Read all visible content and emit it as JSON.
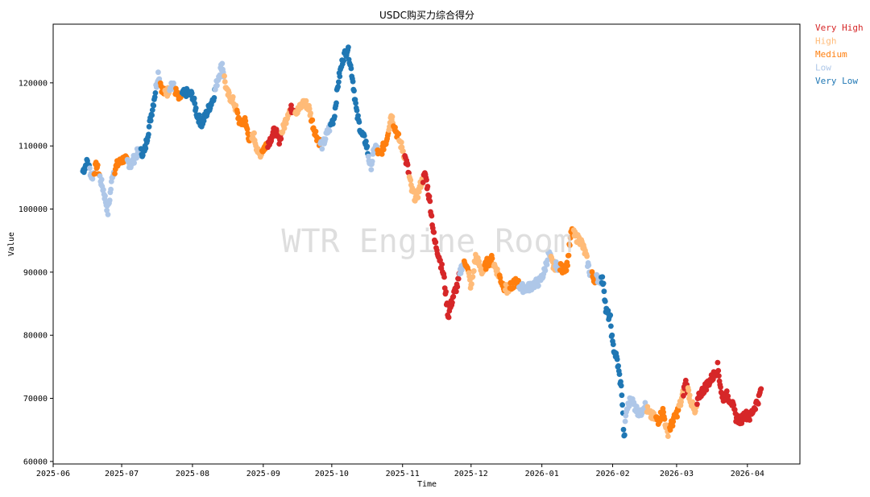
{
  "chart_data": {
    "type": "scatter",
    "title": "USDC购买力综合得分",
    "xlabel": "Time",
    "ylabel": "Value",
    "watermark": "WTR Engine Room",
    "xlim": [
      "2025-06-01",
      "2026-04-24"
    ],
    "ylim": [
      59600,
      129300
    ],
    "x_ticks": [
      "2025-06",
      "2025-07",
      "2025-08",
      "2025-09",
      "2025-10",
      "2025-11",
      "2025-12",
      "2026-01",
      "2026-02",
      "2026-03",
      "2026-04"
    ],
    "x_tick_dates": [
      "2025-06-01",
      "2025-07-01",
      "2025-08-01",
      "2025-09-01",
      "2025-10-01",
      "2025-11-01",
      "2025-12-01",
      "2026-01-01",
      "2026-02-01",
      "2026-03-01",
      "2026-04-01"
    ],
    "y_ticks": [
      60000,
      70000,
      80000,
      90000,
      100000,
      110000,
      120000
    ],
    "grid": false,
    "legend_position": "outside-top-right",
    "legend": [
      {
        "label": "Very High",
        "color": "#d62728"
      },
      {
        "label": "High",
        "color": "#ffbb78"
      },
      {
        "label": "Medium",
        "color": "#ff7f0e"
      },
      {
        "label": "Low",
        "color": "#aec7e8"
      },
      {
        "label": "Very Low",
        "color": "#1f77b4"
      }
    ],
    "series_path": [
      [
        "2025-06-14",
        106000,
        "Very Low"
      ],
      [
        "2025-06-16",
        107500,
        "Very Low"
      ],
      [
        "2025-06-18",
        105000,
        "Low"
      ],
      [
        "2025-06-20",
        107000,
        "Medium"
      ],
      [
        "2025-06-23",
        103000,
        "Low"
      ],
      [
        "2025-06-25",
        99500,
        "Low"
      ],
      [
        "2025-06-27",
        105500,
        "Low"
      ],
      [
        "2025-06-29",
        107000,
        "Medium"
      ],
      [
        "2025-07-02",
        108000,
        "Medium"
      ],
      [
        "2025-07-05",
        107000,
        "Low"
      ],
      [
        "2025-07-08",
        109000,
        "Low"
      ],
      [
        "2025-07-11",
        109000,
        "Very Low"
      ],
      [
        "2025-07-13",
        113000,
        "Very Low"
      ],
      [
        "2025-07-15",
        117000,
        "Very Low"
      ],
      [
        "2025-07-17",
        121500,
        "Low"
      ],
      [
        "2025-07-19",
        118500,
        "Medium"
      ],
      [
        "2025-07-21",
        118500,
        "High"
      ],
      [
        "2025-07-23",
        120000,
        "Low"
      ],
      [
        "2025-07-26",
        117500,
        "Medium"
      ],
      [
        "2025-07-29",
        118500,
        "Very Low"
      ],
      [
        "2025-08-01",
        118000,
        "Very Low"
      ],
      [
        "2025-08-03",
        115000,
        "Very Low"
      ],
      [
        "2025-08-05",
        113500,
        "Very Low"
      ],
      [
        "2025-08-07",
        115000,
        "Very Low"
      ],
      [
        "2025-08-10",
        117500,
        "Very Low"
      ],
      [
        "2025-08-12",
        120500,
        "Low"
      ],
      [
        "2025-08-14",
        123000,
        "Low"
      ],
      [
        "2025-08-16",
        118500,
        "High"
      ],
      [
        "2025-08-19",
        117000,
        "High"
      ],
      [
        "2025-08-22",
        113500,
        "Medium"
      ],
      [
        "2025-08-24",
        114000,
        "Medium"
      ],
      [
        "2025-08-26",
        111000,
        "Medium"
      ],
      [
        "2025-08-28",
        111500,
        "High"
      ],
      [
        "2025-08-30",
        108500,
        "High"
      ],
      [
        "2025-09-02",
        110000,
        "Medium"
      ],
      [
        "2025-09-04",
        111000,
        "Very High"
      ],
      [
        "2025-09-06",
        112500,
        "Very High"
      ],
      [
        "2025-09-08",
        111000,
        "Very High"
      ],
      [
        "2025-09-10",
        113000,
        "High"
      ],
      [
        "2025-09-12",
        115500,
        "High"
      ],
      [
        "2025-09-14",
        116000,
        "Very High"
      ],
      [
        "2025-09-16",
        115500,
        "High"
      ],
      [
        "2025-09-19",
        117000,
        "High"
      ],
      [
        "2025-09-21",
        116000,
        "High"
      ],
      [
        "2025-09-23",
        113000,
        "Medium"
      ],
      [
        "2025-09-25",
        111000,
        "Medium"
      ],
      [
        "2025-09-27",
        110000,
        "Low"
      ],
      [
        "2025-09-29",
        112000,
        "Low"
      ],
      [
        "2025-10-02",
        114500,
        "Very Low"
      ],
      [
        "2025-10-04",
        120500,
        "Very Low"
      ],
      [
        "2025-10-06",
        124000,
        "Very Low"
      ],
      [
        "2025-10-08",
        125500,
        "Very Low"
      ],
      [
        "2025-10-10",
        121000,
        "Very Low"
      ],
      [
        "2025-10-12",
        115000,
        "Very Low"
      ],
      [
        "2025-10-14",
        112000,
        "Very Low"
      ],
      [
        "2025-10-16",
        110500,
        "Very Low"
      ],
      [
        "2025-10-18",
        106500,
        "Low"
      ],
      [
        "2025-10-20",
        110000,
        "Low"
      ],
      [
        "2025-10-22",
        108500,
        "Medium"
      ],
      [
        "2025-10-25",
        111000,
        "Medium"
      ],
      [
        "2025-10-27",
        115000,
        "High"
      ],
      [
        "2025-10-29",
        112500,
        "Medium"
      ],
      [
        "2025-11-01",
        109500,
        "High"
      ],
      [
        "2025-11-03",
        107000,
        "Very High"
      ],
      [
        "2025-11-05",
        103000,
        "High"
      ],
      [
        "2025-11-07",
        101500,
        "High"
      ],
      [
        "2025-11-09",
        104000,
        "High"
      ],
      [
        "2025-11-11",
        105500,
        "Very High"
      ],
      [
        "2025-11-13",
        101000,
        "Very High"
      ],
      [
        "2025-11-15",
        95000,
        "Very High"
      ],
      [
        "2025-11-17",
        92500,
        "Very High"
      ],
      [
        "2025-11-19",
        89500,
        "Very High"
      ],
      [
        "2025-11-21",
        83000,
        "Very High"
      ],
      [
        "2025-11-23",
        86000,
        "Very High"
      ],
      [
        "2025-11-25",
        88000,
        "Very High"
      ],
      [
        "2025-11-27",
        91000,
        "Low"
      ],
      [
        "2025-11-29",
        91500,
        "Medium"
      ],
      [
        "2025-12-01",
        87500,
        "High"
      ],
      [
        "2025-12-03",
        92500,
        "High"
      ],
      [
        "2025-12-06",
        90000,
        "High"
      ],
      [
        "2025-12-08",
        91500,
        "Medium"
      ],
      [
        "2025-12-10",
        92000,
        "Medium"
      ],
      [
        "2025-12-12",
        90500,
        "High"
      ],
      [
        "2025-12-15",
        88000,
        "Medium"
      ],
      [
        "2025-12-17",
        87000,
        "High"
      ],
      [
        "2025-12-19",
        88000,
        "Medium"
      ],
      [
        "2025-12-21",
        88500,
        "Medium"
      ],
      [
        "2025-12-23",
        87500,
        "Low"
      ],
      [
        "2025-12-26",
        87500,
        "Low"
      ],
      [
        "2025-12-28",
        88000,
        "Low"
      ],
      [
        "2025-12-31",
        88500,
        "Low"
      ],
      [
        "2026-01-02",
        90000,
        "Low"
      ],
      [
        "2026-01-04",
        93000,
        "Low"
      ],
      [
        "2026-01-06",
        91000,
        "High"
      ],
      [
        "2026-01-08",
        91000,
        "Low"
      ],
      [
        "2026-01-10",
        90500,
        "Medium"
      ],
      [
        "2026-01-12",
        91000,
        "Medium"
      ],
      [
        "2026-01-14",
        96500,
        "Medium"
      ],
      [
        "2026-01-16",
        95500,
        "High"
      ],
      [
        "2026-01-18",
        95000,
        "High"
      ],
      [
        "2026-01-20",
        93000,
        "High"
      ],
      [
        "2026-01-22",
        90000,
        "Low"
      ],
      [
        "2026-01-24",
        89000,
        "Medium"
      ],
      [
        "2026-01-26",
        89000,
        "Low"
      ],
      [
        "2026-01-28",
        88500,
        "Very Low"
      ],
      [
        "2026-01-29",
        84000,
        "Very Low"
      ],
      [
        "2026-01-31",
        82500,
        "Very Low"
      ],
      [
        "2026-02-01",
        78500,
        "Very Low"
      ],
      [
        "2026-02-03",
        76000,
        "Very Low"
      ],
      [
        "2026-02-05",
        71000,
        "Very Low"
      ],
      [
        "2026-02-06",
        63500,
        "Very Low"
      ],
      [
        "2026-02-07",
        68000,
        "Low"
      ],
      [
        "2026-02-09",
        70000,
        "Low"
      ],
      [
        "2026-02-11",
        68500,
        "Low"
      ],
      [
        "2026-02-13",
        67500,
        "Low"
      ],
      [
        "2026-02-15",
        69000,
        "Low"
      ],
      [
        "2026-02-17",
        67500,
        "High"
      ],
      [
        "2026-02-19",
        67000,
        "High"
      ],
      [
        "2026-02-21",
        66500,
        "Medium"
      ],
      [
        "2026-02-23",
        68000,
        "Medium"
      ],
      [
        "2026-02-25",
        64500,
        "High"
      ],
      [
        "2026-02-27",
        66000,
        "Medium"
      ],
      [
        "2026-03-01",
        67500,
        "Medium"
      ],
      [
        "2026-03-03",
        69500,
        "High"
      ],
      [
        "2026-03-05",
        72500,
        "Very High"
      ],
      [
        "2026-03-07",
        70000,
        "High"
      ],
      [
        "2026-03-09",
        67500,
        "High"
      ],
      [
        "2026-03-11",
        70500,
        "Very High"
      ],
      [
        "2026-03-13",
        71500,
        "Very High"
      ],
      [
        "2026-03-15",
        72500,
        "Very High"
      ],
      [
        "2026-03-17",
        73500,
        "Very High"
      ],
      [
        "2026-03-19",
        75000,
        "Very High"
      ],
      [
        "2026-03-21",
        70000,
        "Very High"
      ],
      [
        "2026-03-23",
        70500,
        "Very High"
      ],
      [
        "2026-03-25",
        69500,
        "Very High"
      ],
      [
        "2026-03-27",
        67000,
        "Very High"
      ],
      [
        "2026-03-29",
        66500,
        "Very High"
      ],
      [
        "2026-03-31",
        67500,
        "Very High"
      ],
      [
        "2026-04-02",
        67000,
        "Very High"
      ],
      [
        "2026-04-04",
        68500,
        "Very High"
      ],
      [
        "2026-04-06",
        70000,
        "Very High"
      ],
      [
        "2026-04-07",
        71500,
        "Very High"
      ]
    ]
  }
}
